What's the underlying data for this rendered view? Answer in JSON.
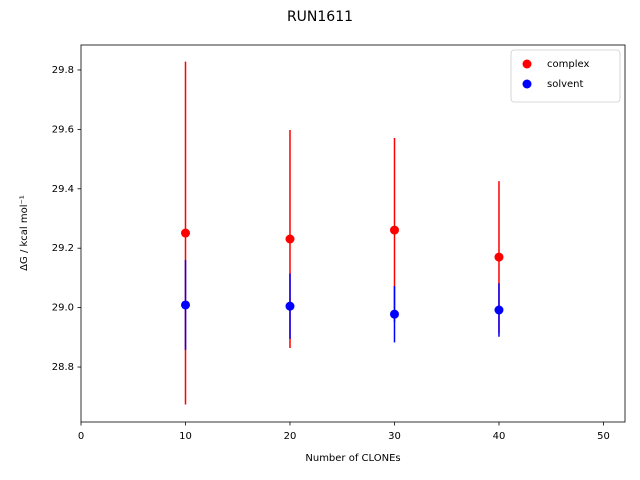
{
  "chart_data": {
    "type": "errorbar-scatter",
    "title": "RUN1611",
    "x_label": "Number of CLONEs",
    "y_label": "ΔG / kcal mol⁻¹",
    "series": [
      {
        "name": "complex",
        "color": "#ff0000",
        "x": [
          10,
          20,
          30,
          40
        ],
        "values": [
          29.251,
          29.231,
          29.261,
          29.17
        ],
        "errors": [
          0.577,
          0.367,
          0.31,
          0.256
        ]
      },
      {
        "name": "solvent",
        "color": "#0000ff",
        "x": [
          10,
          20,
          30,
          40
        ],
        "values": [
          29.009,
          29.005,
          28.978,
          28.992
        ],
        "errors": [
          0.151,
          0.11,
          0.095,
          0.09
        ]
      }
    ],
    "xlim": [
      0,
      52.06
    ],
    "xticks": [
      0,
      10,
      20,
      30,
      40,
      50
    ],
    "ylim": [
      28.615,
      29.884
    ],
    "yticks": [
      28.8,
      {
        "value": 29,
        "label": "29.0"
      },
      29.2,
      29.4,
      29.6,
      29.8
    ],
    "legend": "upper right",
    "grid": false
  }
}
